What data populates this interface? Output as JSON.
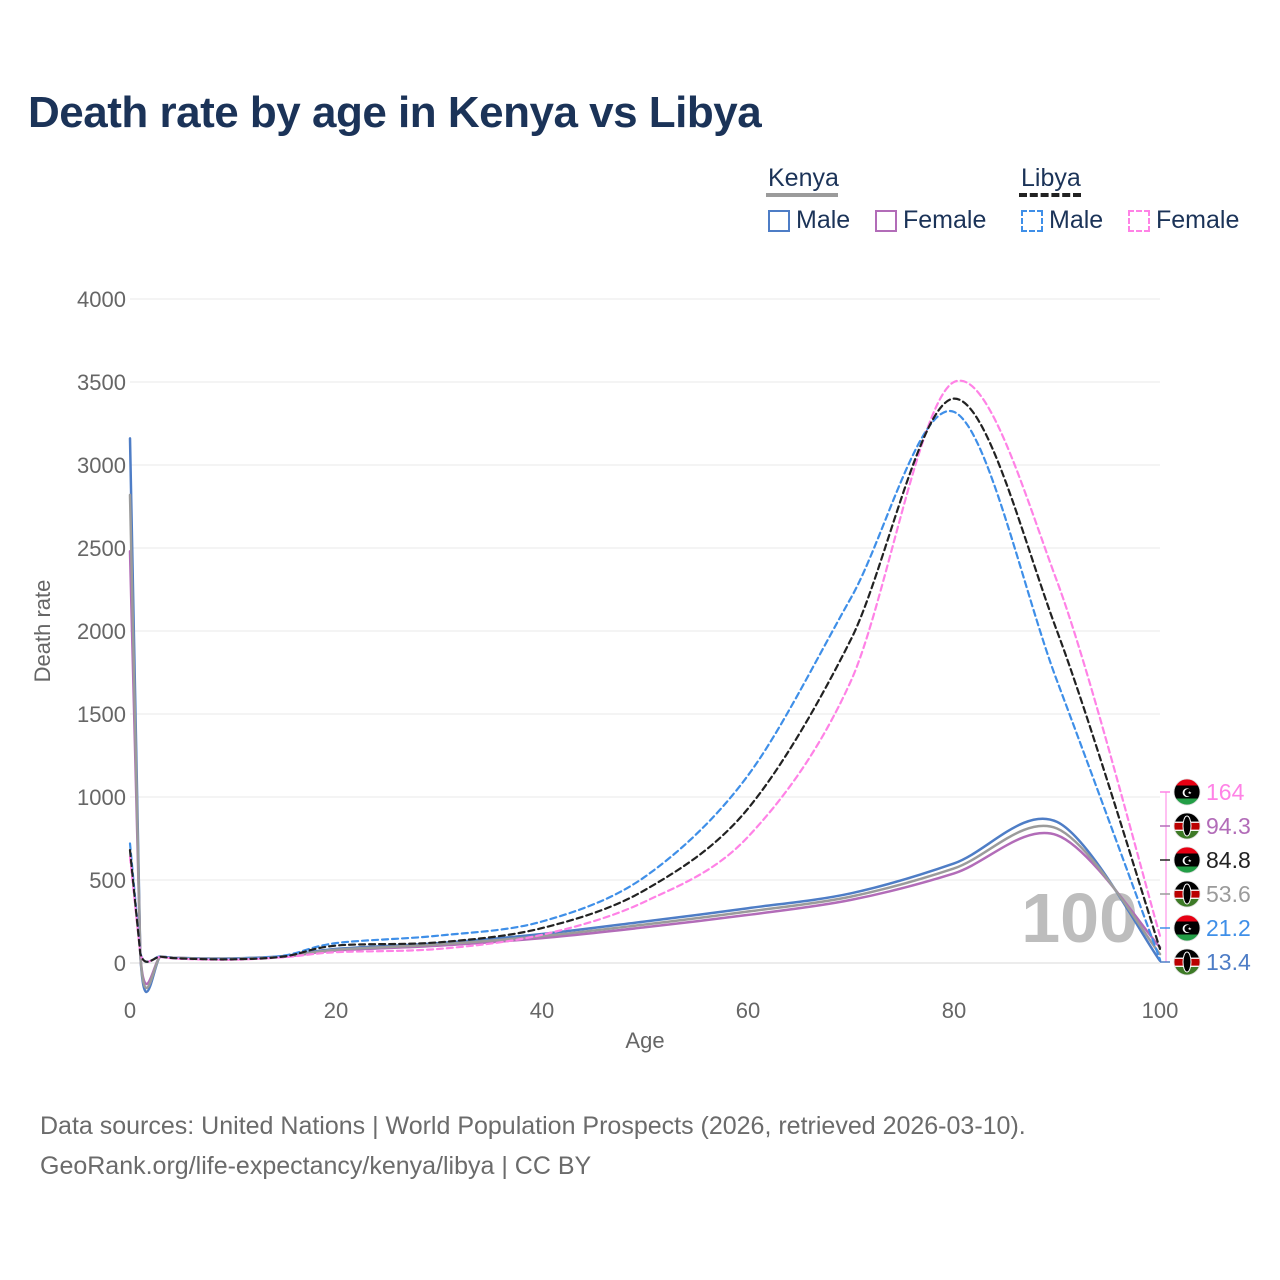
{
  "title": "Death rate by age in Kenya vs Libya",
  "legend": {
    "groups": [
      {
        "label": "Kenya",
        "dash": false,
        "color": "#9b9b9b"
      },
      {
        "label": "Libya",
        "dash": true,
        "color": "#222222"
      }
    ],
    "items": [
      {
        "label": "Male",
        "country": "Kenya",
        "color": "#4e7dc6",
        "dashed": false
      },
      {
        "label": "Female",
        "country": "Kenya",
        "color": "#b26cb8",
        "dashed": false
      },
      {
        "label": "Male",
        "country": "Libya",
        "color": "#3f8fe8",
        "dashed": true
      },
      {
        "label": "Female",
        "country": "Libya",
        "color": "#ff82e6",
        "dashed": true
      }
    ]
  },
  "footer": {
    "line1": "Data sources: United Nations | World Population Prospects (2026, retrieved 2026-03-10).",
    "line2": "GeoRank.org/life-expectancy/kenya/libya | CC BY"
  },
  "chart_data": {
    "type": "line",
    "xlabel": "Age",
    "ylabel": "Death rate",
    "xlim": [
      0,
      100
    ],
    "ylim": [
      0,
      4000
    ],
    "xticks": [
      0,
      20,
      40,
      60,
      80,
      100
    ],
    "yticks": [
      0,
      500,
      1000,
      1500,
      2000,
      2500,
      3000,
      3500,
      4000
    ],
    "grid": true,
    "watermark": "100",
    "series": [
      {
        "name": "Kenya Male",
        "color": "#4e7dc6",
        "dashed": false,
        "width": 2.5,
        "points": [
          [
            0,
            3160
          ],
          [
            1,
            50
          ],
          [
            3,
            38
          ],
          [
            5,
            30
          ],
          [
            10,
            28
          ],
          [
            15,
            42
          ],
          [
            20,
            85
          ],
          [
            30,
            120
          ],
          [
            40,
            175
          ],
          [
            50,
            250
          ],
          [
            60,
            330
          ],
          [
            70,
            420
          ],
          [
            80,
            600
          ],
          [
            90,
            850
          ],
          [
            100,
            13.4
          ]
        ]
      },
      {
        "name": "Kenya Female",
        "color": "#b26cb8",
        "dashed": false,
        "width": 2.5,
        "points": [
          [
            0,
            2480
          ],
          [
            1,
            50
          ],
          [
            3,
            38
          ],
          [
            5,
            30
          ],
          [
            10,
            25
          ],
          [
            15,
            38
          ],
          [
            20,
            75
          ],
          [
            30,
            105
          ],
          [
            40,
            150
          ],
          [
            50,
            215
          ],
          [
            60,
            290
          ],
          [
            70,
            380
          ],
          [
            80,
            540
          ],
          [
            90,
            770
          ],
          [
            100,
            94.3
          ]
        ]
      },
      {
        "name": "Kenya Total",
        "color": "#9b9b9b",
        "dashed": false,
        "width": 2.5,
        "points": [
          [
            0,
            2820
          ],
          [
            1,
            50
          ],
          [
            3,
            38
          ],
          [
            5,
            30
          ],
          [
            10,
            27
          ],
          [
            15,
            40
          ],
          [
            20,
            80
          ],
          [
            30,
            112
          ],
          [
            40,
            162
          ],
          [
            50,
            232
          ],
          [
            60,
            310
          ],
          [
            70,
            400
          ],
          [
            80,
            570
          ],
          [
            90,
            810
          ],
          [
            100,
            53.6
          ]
        ]
      },
      {
        "name": "Libya Male",
        "color": "#3f8fe8",
        "dashed": true,
        "width": 2.2,
        "points": [
          [
            0,
            720
          ],
          [
            1,
            60
          ],
          [
            3,
            40
          ],
          [
            5,
            28
          ],
          [
            10,
            25
          ],
          [
            15,
            45
          ],
          [
            20,
            120
          ],
          [
            30,
            165
          ],
          [
            40,
            250
          ],
          [
            50,
            520
          ],
          [
            60,
            1130
          ],
          [
            70,
            2200
          ],
          [
            80,
            3320
          ],
          [
            90,
            1700
          ],
          [
            100,
            21.2
          ]
        ]
      },
      {
        "name": "Libya Female",
        "color": "#ff82e6",
        "dashed": true,
        "width": 2.2,
        "points": [
          [
            0,
            640
          ],
          [
            1,
            55
          ],
          [
            3,
            36
          ],
          [
            5,
            25
          ],
          [
            10,
            20
          ],
          [
            15,
            35
          ],
          [
            20,
            65
          ],
          [
            30,
            85
          ],
          [
            40,
            170
          ],
          [
            50,
            370
          ],
          [
            60,
            760
          ],
          [
            70,
            1700
          ],
          [
            80,
            3500
          ],
          [
            90,
            2300
          ],
          [
            100,
            164
          ]
        ]
      },
      {
        "name": "Libya Total",
        "color": "#222222",
        "dashed": true,
        "width": 2.2,
        "points": [
          [
            0,
            680
          ],
          [
            1,
            57
          ],
          [
            3,
            38
          ],
          [
            5,
            27
          ],
          [
            10,
            22
          ],
          [
            15,
            40
          ],
          [
            20,
            105
          ],
          [
            30,
            125
          ],
          [
            40,
            210
          ],
          [
            50,
            440
          ],
          [
            60,
            930
          ],
          [
            70,
            1950
          ],
          [
            80,
            3400
          ],
          [
            90,
            2000
          ],
          [
            100,
            84.8
          ]
        ]
      }
    ],
    "end_labels": [
      {
        "value": "164",
        "color": "#ff82e6",
        "flag": "libya"
      },
      {
        "value": "94.3",
        "color": "#b26cb8",
        "flag": "kenya"
      },
      {
        "value": "84.8",
        "color": "#222222",
        "flag": "libya"
      },
      {
        "value": "53.6",
        "color": "#9b9b9b",
        "flag": "kenya"
      },
      {
        "value": "21.2",
        "color": "#3f8fe8",
        "flag": "libya"
      },
      {
        "value": "13.4",
        "color": "#4e7dc6",
        "flag": "kenya"
      }
    ]
  }
}
